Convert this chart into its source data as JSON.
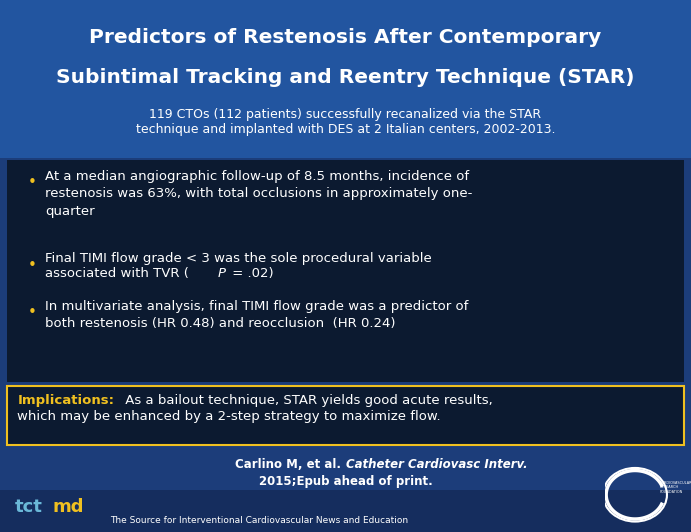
{
  "title_line1": "Predictors of Restenosis After Contemporary",
  "title_line2": "Subintimal Tracking and Reentry Technique (STAR)",
  "subtitle_line1": "119 CTOs (112 patients) successfully recanalized via the STAR",
  "subtitle_line2": "technique and implanted with DES at 2 Italian centers, 2002-2013.",
  "bullet1": "At a median angiographic follow-up of 8.5 months, incidence of\nrestenosis was 63%, with total occlusions in approximately one-\nquarter",
  "bullet2_part1": "Final TIMI flow grade < 3 was the sole procedural variable\nassociated with TVR (",
  "bullet2_P": "P",
  "bullet2_part2": " = .02)",
  "bullet3": "In multivariate analysis, final TIMI flow grade was a predictor of\nboth restenosis (HR 0.48) and reocclusion  (HR 0.24)",
  "impl_label": "Implications:",
  "impl_text1": " As a bailout technique, STAR yields good acute results,",
  "impl_text2": "which may be enhanced by a 2-step strategy to maximize flow.",
  "cite1": "Carlino M, et al. ",
  "cite_italic": "Catheter Cardiovasc Interv.",
  "cite2": "2015;Epub ahead of print.",
  "footer": "The Source for Interventional Cardiovascular News and Education",
  "bg_main": "#1c3d7a",
  "bg_title": "#2255a0",
  "bg_bullet_box": "#0c1a30",
  "bg_impl_box": "#0c1a30",
  "bg_footer": "#152d5e",
  "col_title": "#ffffff",
  "col_subtitle": "#ffffff",
  "col_bullet": "#ffffff",
  "col_impl_label": "#f0c020",
  "col_impl_text": "#ffffff",
  "col_cite": "#ffffff",
  "col_footer": "#ffffff",
  "col_tct": "#6ab8d8",
  "col_md": "#f0c020",
  "col_bullet_dot": "#f0c020",
  "title_fs": 14.5,
  "subtitle_fs": 9.0,
  "bullet_fs": 9.5,
  "impl_fs": 9.5,
  "cite_fs": 8.5,
  "footer_fs": 6.5,
  "tctmd_fs": 13
}
